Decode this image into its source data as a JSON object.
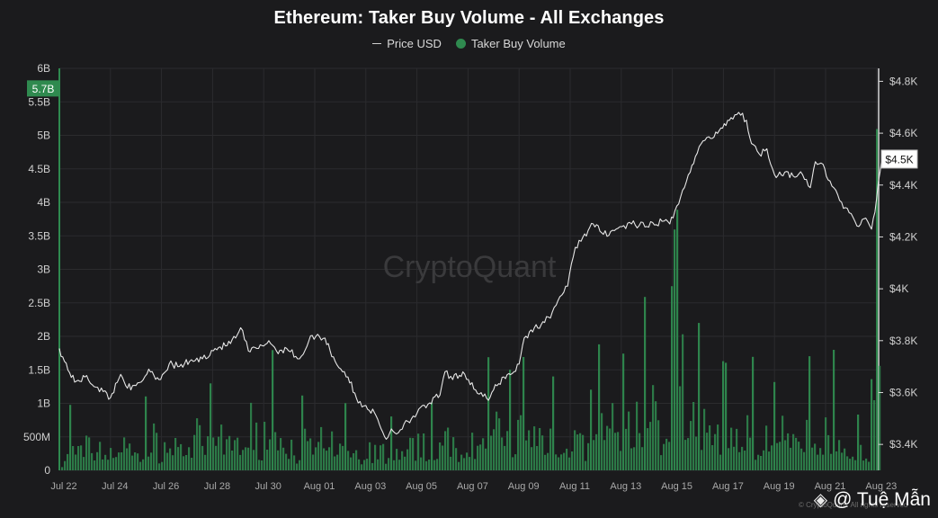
{
  "chart_data": {
    "type": "bar+line",
    "title": "Ethereum: Taker Buy Volume - All Exchanges",
    "legend": [
      "Price USD",
      "Taker Buy Volume"
    ],
    "x_tick_labels": [
      "Jul 22",
      "Jul 24",
      "Jul 26",
      "Jul 28",
      "Jul 30",
      "Aug 01",
      "Aug 03",
      "Aug 05",
      "Aug 07",
      "Aug 09",
      "Aug 11",
      "Aug 13",
      "Aug 15",
      "Aug 17",
      "Aug 19",
      "Aug 21",
      "Aug 23"
    ],
    "x_range_days": [
      0,
      32.2
    ],
    "left_axis": {
      "name": "Taker Buy Volume",
      "tick_labels": [
        "0",
        "500M",
        "1B",
        "1.5B",
        "2B",
        "2.5B",
        "3B",
        "3.5B",
        "4B",
        "4.5B",
        "5B",
        "5.5B",
        "6B"
      ],
      "range": [
        0,
        6000000000
      ]
    },
    "right_axis": {
      "name": "Price USD",
      "tick_labels": [
        "$3.4K",
        "$3.6K",
        "$3.8K",
        "$4K",
        "$4.2K",
        "$4.4K",
        "$4.6K",
        "$4.8K"
      ],
      "range": [
        3300,
        4850
      ]
    },
    "current_volume_label": "5.7B",
    "current_price_label": "$4.5K",
    "volume_key_points": [
      [
        0,
        300000000
      ],
      [
        0.4,
        1000000000
      ],
      [
        3.3,
        1100000000
      ],
      [
        5.9,
        1300000000
      ],
      [
        8.3,
        1800000000
      ],
      [
        9.5,
        1100000000
      ],
      [
        11.2,
        1000000000
      ],
      [
        13.0,
        800000000
      ],
      [
        14.5,
        1000000000
      ],
      [
        16.8,
        1700000000
      ],
      [
        17.6,
        1500000000
      ],
      [
        18.1,
        1700000000
      ],
      [
        19.3,
        1400000000
      ],
      [
        20.8,
        1200000000
      ],
      [
        21.1,
        1900000000
      ],
      [
        22.0,
        1700000000
      ],
      [
        22.9,
        2600000000
      ],
      [
        23.9,
        2400000000
      ],
      [
        24.1,
        4000000000
      ],
      [
        25.0,
        2200000000
      ],
      [
        26.0,
        1600000000
      ],
      [
        27.1,
        1700000000
      ],
      [
        28.0,
        1300000000
      ],
      [
        29.3,
        1700000000
      ],
      [
        30.3,
        1800000000
      ],
      [
        31.2,
        800000000
      ],
      [
        31.8,
        1400000000
      ],
      [
        32.0,
        5700000000
      ]
    ],
    "price_key_points": [
      [
        0,
        3770
      ],
      [
        0.2,
        3720
      ],
      [
        0.6,
        3640
      ],
      [
        1.0,
        3660
      ],
      [
        1.5,
        3620
      ],
      [
        2.0,
        3580
      ],
      [
        2.4,
        3670
      ],
      [
        2.8,
        3610
      ],
      [
        3.2,
        3640
      ],
      [
        3.5,
        3690
      ],
      [
        3.9,
        3650
      ],
      [
        4.3,
        3710
      ],
      [
        4.7,
        3700
      ],
      [
        5.1,
        3720
      ],
      [
        5.6,
        3730
      ],
      [
        6.1,
        3770
      ],
      [
        6.5,
        3780
      ],
      [
        6.9,
        3810
      ],
      [
        7.1,
        3850
      ],
      [
        7.4,
        3760
      ],
      [
        7.8,
        3770
      ],
      [
        8.2,
        3800
      ],
      [
        8.5,
        3760
      ],
      [
        8.9,
        3770
      ],
      [
        9.4,
        3730
      ],
      [
        9.7,
        3780
      ],
      [
        9.9,
        3820
      ],
      [
        10.4,
        3810
      ],
      [
        10.8,
        3720
      ],
      [
        11.3,
        3660
      ],
      [
        11.7,
        3560
      ],
      [
        12.0,
        3550
      ],
      [
        12.4,
        3510
      ],
      [
        12.6,
        3460
      ],
      [
        12.8,
        3420
      ],
      [
        13.0,
        3460
      ],
      [
        13.2,
        3440
      ],
      [
        13.5,
        3480
      ],
      [
        14.0,
        3520
      ],
      [
        14.5,
        3560
      ],
      [
        14.9,
        3590
      ],
      [
        15.1,
        3680
      ],
      [
        15.4,
        3650
      ],
      [
        15.8,
        3680
      ],
      [
        16.3,
        3610
      ],
      [
        16.8,
        3570
      ],
      [
        17.0,
        3610
      ],
      [
        17.4,
        3660
      ],
      [
        17.8,
        3680
      ],
      [
        18.0,
        3710
      ],
      [
        18.2,
        3810
      ],
      [
        18.6,
        3850
      ],
      [
        19.0,
        3870
      ],
      [
        19.3,
        3910
      ],
      [
        19.6,
        3970
      ],
      [
        19.9,
        4010
      ],
      [
        20.2,
        4160
      ],
      [
        20.5,
        4200
      ],
      [
        20.9,
        4250
      ],
      [
        21.3,
        4210
      ],
      [
        21.8,
        4230
      ],
      [
        22.4,
        4250
      ],
      [
        23.0,
        4240
      ],
      [
        23.6,
        4260
      ],
      [
        23.9,
        4250
      ],
      [
        24.1,
        4300
      ],
      [
        24.4,
        4380
      ],
      [
        24.7,
        4450
      ],
      [
        24.9,
        4510
      ],
      [
        25.2,
        4570
      ],
      [
        25.5,
        4580
      ],
      [
        25.9,
        4620
      ],
      [
        26.3,
        4660
      ],
      [
        26.6,
        4680
      ],
      [
        26.9,
        4650
      ],
      [
        27.1,
        4560
      ],
      [
        27.4,
        4520
      ],
      [
        27.7,
        4540
      ],
      [
        28.0,
        4440
      ],
      [
        28.4,
        4450
      ],
      [
        28.8,
        4430
      ],
      [
        29.1,
        4440
      ],
      [
        29.4,
        4390
      ],
      [
        29.6,
        4490
      ],
      [
        29.9,
        4480
      ],
      [
        30.1,
        4420
      ],
      [
        30.4,
        4380
      ],
      [
        30.7,
        4310
      ],
      [
        31.0,
        4290
      ],
      [
        31.3,
        4240
      ],
      [
        31.5,
        4270
      ],
      [
        31.8,
        4230
      ],
      [
        32.0,
        4350
      ],
      [
        32.2,
        4500
      ]
    ]
  },
  "attribution": {
    "handle": "@ Tuệ Mẫn",
    "copyright": "© CryptoQuant. All rights reserved"
  },
  "watermark": "CryptoQuant",
  "colors": {
    "background": "#1b1b1d",
    "volume": "#2f8a4f",
    "price": "#e6e6e6",
    "grid": "#2b2b2e"
  }
}
